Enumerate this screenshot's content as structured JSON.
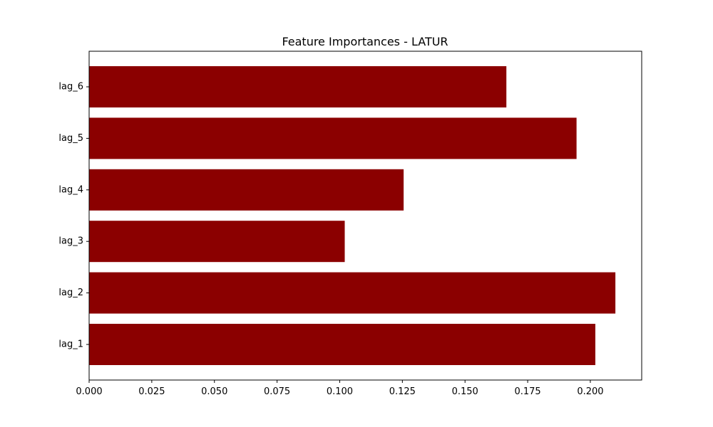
{
  "chart_data": {
    "type": "bar",
    "orientation": "horizontal",
    "title": "Feature Importances - LATUR",
    "xlabel": "",
    "ylabel": "",
    "categories": [
      "lag_1",
      "lag_2",
      "lag_3",
      "lag_4",
      "lag_5",
      "lag_6"
    ],
    "values": [
      0.202,
      0.21,
      0.102,
      0.1255,
      0.1945,
      0.1665
    ],
    "xlim": [
      0,
      0.2205
    ],
    "xticks": [
      0.0,
      0.025,
      0.05,
      0.075,
      0.1,
      0.125,
      0.15,
      0.175,
      0.2
    ],
    "xtick_labels": [
      "0.000",
      "0.025",
      "0.050",
      "0.075",
      "0.100",
      "0.125",
      "0.150",
      "0.175",
      "0.200"
    ],
    "bar_color": "#8b0000",
    "grid": false,
    "legend": "none"
  }
}
